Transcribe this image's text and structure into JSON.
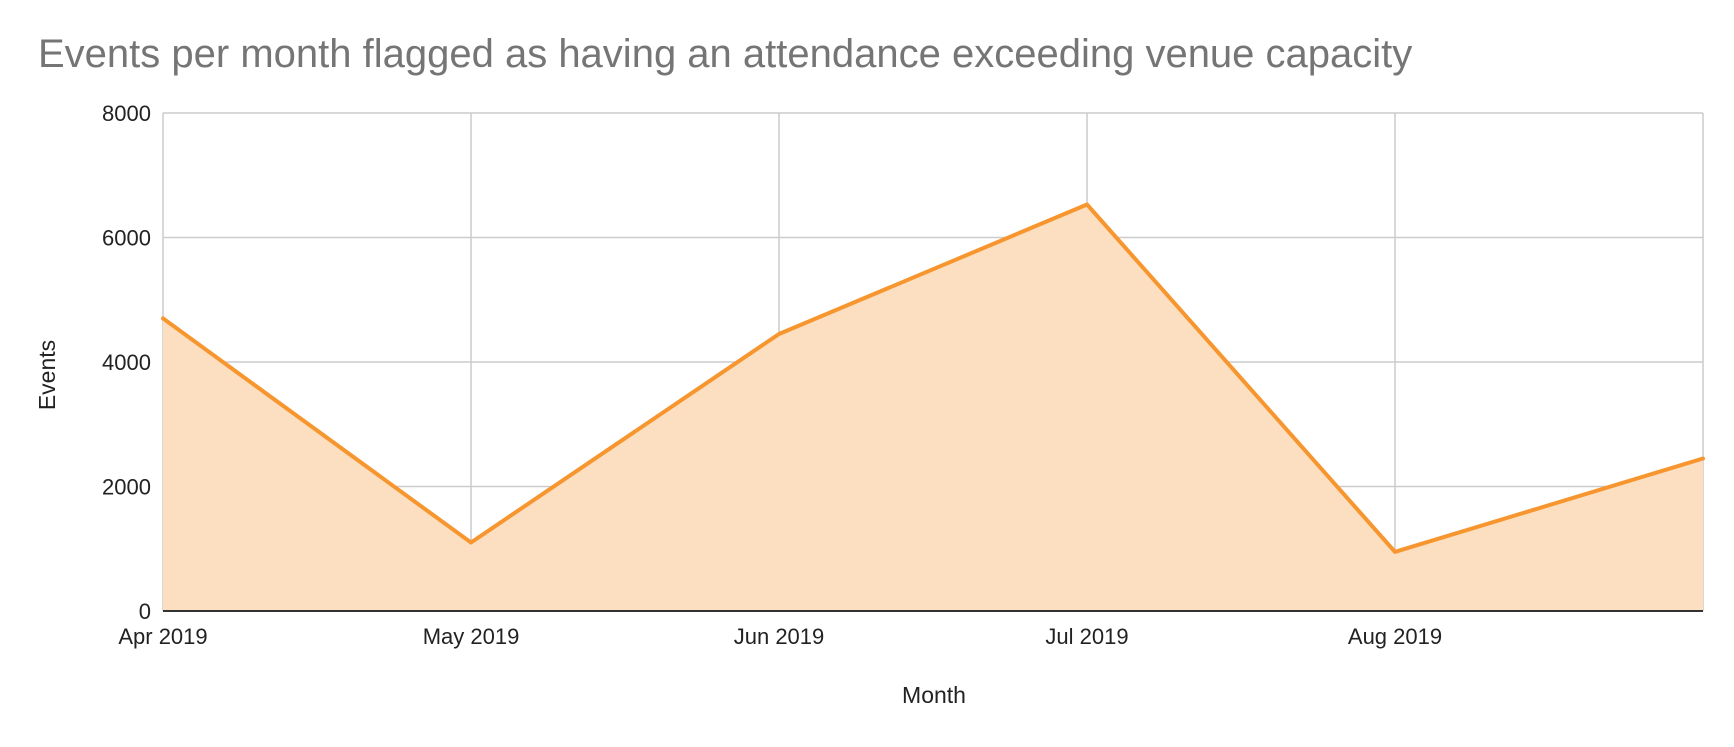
{
  "chart_data": {
    "type": "area",
    "title": "Events per month flagged as having an attendance exceeding venue capacity",
    "xlabel": "Month",
    "ylabel": "Events",
    "x": [
      "2019-04-01",
      "2019-05-01",
      "2019-06-01",
      "2019-07-01",
      "2019-08-01",
      "2019-09-01"
    ],
    "x_tick_labels": [
      "Apr 2019",
      "May 2019",
      "Jun 2019",
      "Jul 2019",
      "Aug 2019"
    ],
    "series": [
      {
        "values": [
          4700,
          1100,
          4450,
          6530,
          950,
          2450
        ],
        "color": "#f7962f",
        "fill_color": "#fcdfc0"
      }
    ],
    "ylim": [
      0,
      8000
    ],
    "y_ticks": [
      0,
      2000,
      4000,
      6000,
      8000
    ],
    "grid": true,
    "legend": "none"
  }
}
